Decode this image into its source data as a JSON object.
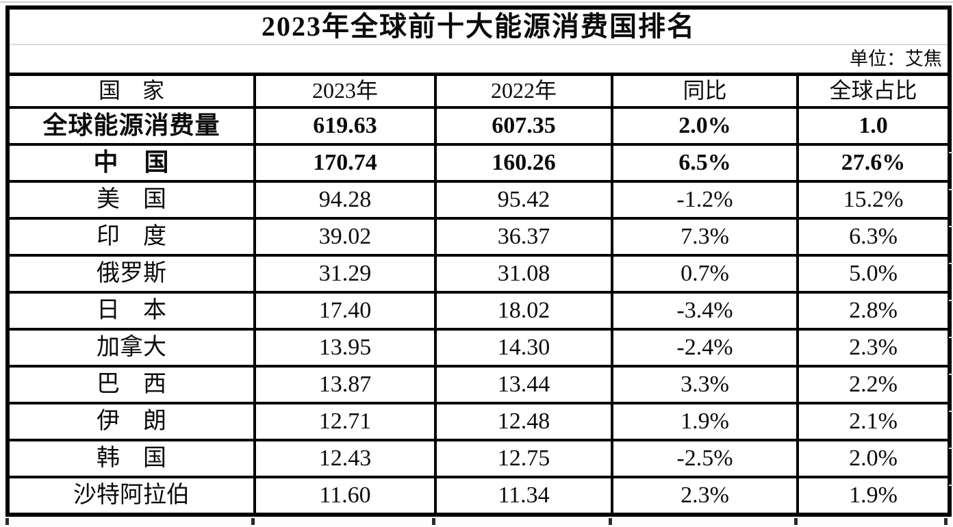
{
  "title": "2023年全球前十大能源消费国排名",
  "unit_note": "单位：艾焦",
  "table": {
    "headers": [
      "国　家",
      "2023年",
      "2022年",
      "同比",
      "全球占比"
    ],
    "rows": [
      {
        "name": "全球能源消费量",
        "y2023": "619.63",
        "y2022": "607.35",
        "yoy": "2.0%",
        "share": "1.0",
        "bold": true
      },
      {
        "name": "中　国",
        "y2023": "170.74",
        "y2022": "160.26",
        "yoy": "6.5%",
        "share": "27.6%",
        "bold": true
      },
      {
        "name": "美　国",
        "y2023": "94.28",
        "y2022": "95.42",
        "yoy": "-1.2%",
        "share": "15.2%",
        "bold": false
      },
      {
        "name": "印　度",
        "y2023": "39.02",
        "y2022": "36.37",
        "yoy": "7.3%",
        "share": "6.3%",
        "bold": false
      },
      {
        "name": "俄罗斯",
        "y2023": "31.29",
        "y2022": "31.08",
        "yoy": "0.7%",
        "share": "5.0%",
        "bold": false
      },
      {
        "name": "日　本",
        "y2023": "17.40",
        "y2022": "18.02",
        "yoy": "-3.4%",
        "share": "2.8%",
        "bold": false
      },
      {
        "name": "加拿大",
        "y2023": "13.95",
        "y2022": "14.30",
        "yoy": "-2.4%",
        "share": "2.3%",
        "bold": false
      },
      {
        "name": "巴　西",
        "y2023": "13.87",
        "y2022": "13.44",
        "yoy": "3.3%",
        "share": "2.2%",
        "bold": false
      },
      {
        "name": "伊　朗",
        "y2023": "12.71",
        "y2022": "12.48",
        "yoy": "1.9%",
        "share": "2.1%",
        "bold": false
      },
      {
        "name": "韩　国",
        "y2023": "12.43",
        "y2022": "12.75",
        "yoy": "-2.5%",
        "share": "2.0%",
        "bold": false
      },
      {
        "name": "沙特阿拉伯",
        "y2023": "11.60",
        "y2022": "11.34",
        "yoy": "2.3%",
        "share": "1.9%",
        "bold": false
      }
    ]
  },
  "colors": {
    "border": "#000000",
    "text": "#0b0b0b",
    "background": "#ffffff",
    "hairline": "#cfcfcf"
  }
}
